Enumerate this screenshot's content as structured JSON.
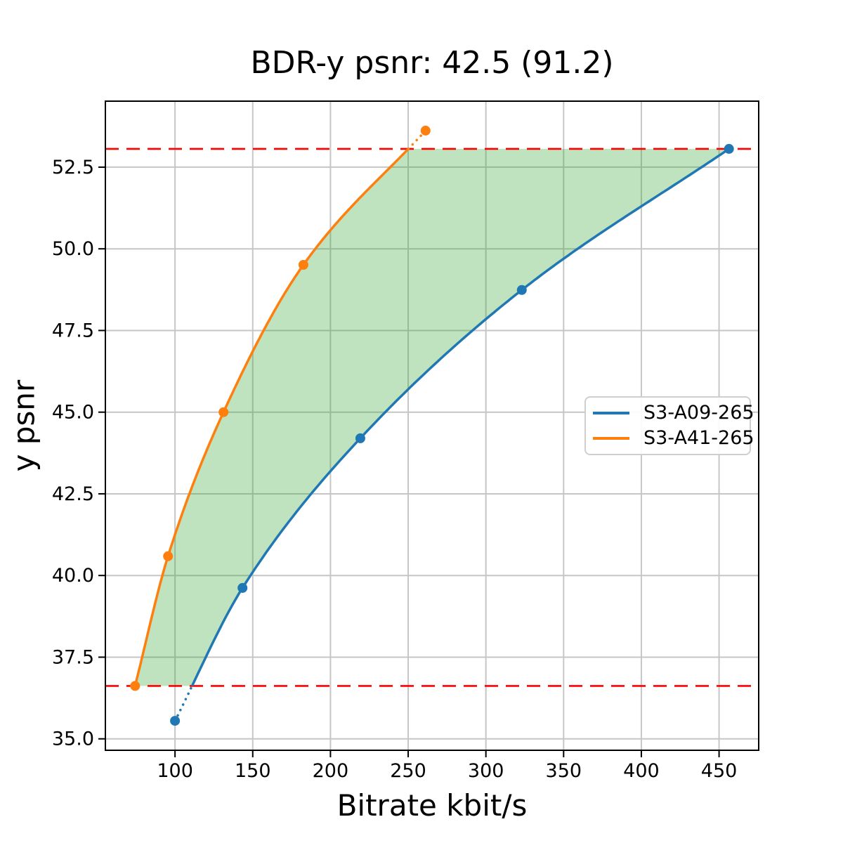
{
  "chart_data": {
    "type": "line",
    "title": "BDR-y psnr: 42.5 (91.2)",
    "xlabel": "Bitrate kbit/s",
    "ylabel": "y psnr",
    "xlim": [
      55.2,
      475.5
    ],
    "ylim": [
      34.65,
      54.52
    ],
    "grid": true,
    "legend_position": "center right",
    "x_ticks": {
      "values": [
        100,
        150,
        200,
        250,
        300,
        350,
        400,
        450
      ],
      "labels": [
        "100",
        "150",
        "200",
        "250",
        "300",
        "350",
        "400",
        "450"
      ]
    },
    "y_ticks": {
      "values": [
        35.0,
        37.5,
        40.0,
        42.5,
        45.0,
        47.5,
        50.0,
        52.5
      ],
      "labels": [
        "35.0",
        "37.5",
        "40.0",
        "42.5",
        "45.0",
        "47.5",
        "50.0",
        "52.5"
      ]
    },
    "series": [
      {
        "name": "S3-A09-265",
        "color": "#1f77b4",
        "marker": "circle",
        "points": [
          [
            100.0,
            35.55
          ],
          [
            143.4,
            39.62
          ],
          [
            219.2,
            44.2
          ],
          [
            323.1,
            48.74
          ],
          [
            456.4,
            53.06
          ]
        ]
      },
      {
        "name": "S3-A41-265",
        "color": "#ff7f0e",
        "marker": "circle",
        "points": [
          [
            74.3,
            36.62
          ],
          [
            95.5,
            40.59
          ],
          [
            131.2,
            45.0
          ],
          [
            182.6,
            49.51
          ],
          [
            261.2,
            53.62
          ]
        ]
      }
    ],
    "reference_lines": {
      "upper": 53.06,
      "lower": 36.62,
      "color": "#ff0000",
      "style": "dashed"
    },
    "shaded_region": {
      "color": "#2ca02c",
      "opacity": 0.3,
      "description": "BD overlap area between the two rate curves bounded by the dashed reference lines"
    },
    "style": {
      "grid_color": "#c6c6c6",
      "spine_color": "#000000",
      "line_width": 3.5,
      "marker_radius": 7
    }
  }
}
